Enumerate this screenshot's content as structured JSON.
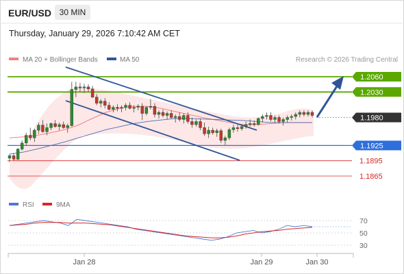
{
  "header": {
    "symbol": "EUR/USD",
    "timeframe": "30 MIN",
    "datetime": "Thursday, January 29, 2026 7:10:42 AM CET"
  },
  "legend": {
    "ma20": "MA 20 + Bollinger Bands",
    "ma50": "MA 50",
    "ma20_color": "#f08080",
    "ma50_color": "#2f5597",
    "credit": "Research © 2026 Trading Central"
  },
  "levels": {
    "resistance_2": "1.2060",
    "resistance_1": "1.2030",
    "current": "1.1980",
    "pivot": "1.1925",
    "support_1": "1.1895",
    "support_2": "1.1865",
    "resistance_color": "#5aa800",
    "pivot_color": "#2e6fdb",
    "support_color": "#d92626",
    "current_color": "#333333"
  },
  "x_axis": {
    "labels": [
      "Jan 28",
      "Jan 29",
      "Jan 30"
    ]
  },
  "rsi_panel": {
    "legend_rsi": "RSI",
    "legend_ma": "9MA",
    "rsi_color": "#4a7bd4",
    "ma_color": "#d92626",
    "ticks": [
      "70",
      "50",
      "30"
    ]
  },
  "chart_data": [
    {
      "type": "candlestick",
      "series": [
        {
          "name": "EUR/USD",
          "ohlc": [
            [
              1.19,
              1.1908,
              1.1892,
              1.1905
            ],
            [
              1.1905,
              1.191,
              1.1895,
              1.1898
            ],
            [
              1.1898,
              1.192,
              1.1896,
              1.1918
            ],
            [
              1.1918,
              1.1935,
              1.1915,
              1.193
            ],
            [
              1.193,
              1.195,
              1.1925,
              1.1945
            ],
            [
              1.1945,
              1.196,
              1.1935,
              1.194
            ],
            [
              1.194,
              1.1958,
              1.1932,
              1.1955
            ],
            [
              1.1955,
              1.197,
              1.1948,
              1.1965
            ],
            [
              1.1965,
              1.1975,
              1.195,
              1.1952
            ],
            [
              1.1952,
              1.1968,
              1.1945,
              1.196
            ],
            [
              1.196,
              1.197,
              1.1955,
              1.1968
            ],
            [
              1.1968,
              1.1975,
              1.196,
              1.1962
            ],
            [
              1.1962,
              1.197,
              1.1955,
              1.1966
            ],
            [
              1.1966,
              1.1972,
              1.1958,
              1.196
            ],
            [
              1.196,
              1.1968,
              1.195,
              1.1964
            ],
            [
              1.1964,
              1.205,
              1.1962,
              1.2035
            ],
            [
              1.2035,
              1.205,
              1.202,
              1.204
            ],
            [
              1.204,
              1.2048,
              1.203,
              1.2038
            ],
            [
              1.2038,
              1.2046,
              1.2028,
              1.204
            ],
            [
              1.204,
              1.2045,
              1.203,
              1.2036
            ],
            [
              1.2036,
              1.2042,
              1.2018,
              1.202
            ],
            [
              1.202,
              1.2026,
              1.2004,
              1.2008
            ],
            [
              1.2008,
              1.2016,
              1.2,
              1.2012
            ],
            [
              1.2012,
              1.2018,
              1.1998,
              1.2004
            ],
            [
              1.2004,
              1.201,
              1.1994,
              1.1996
            ],
            [
              1.1996,
              1.2004,
              1.199,
              1.2
            ],
            [
              1.2,
              1.2006,
              1.1992,
              1.1998
            ],
            [
              1.1998,
              1.2004,
              1.199,
              1.2
            ],
            [
              1.2,
              1.2008,
              1.1994,
              1.2004
            ],
            [
              1.2004,
              1.201,
              1.1996,
              1.1998
            ],
            [
              1.1998,
              1.2004,
              1.199,
              1.2
            ],
            [
              1.2,
              1.2006,
              1.1994,
              1.2002
            ],
            [
              1.2002,
              1.2008,
              1.1975,
              1.1988
            ],
            [
              1.1988,
              1.2002,
              1.1984,
              1.2
            ],
            [
              1.2,
              1.2016,
              1.1996,
              1.2002
            ],
            [
              1.2002,
              1.2008,
              1.198,
              1.1986
            ],
            [
              1.1986,
              1.1994,
              1.1978,
              1.199
            ],
            [
              1.199,
              1.1996,
              1.198,
              1.1984
            ],
            [
              1.1984,
              1.1992,
              1.1976,
              1.1988
            ],
            [
              1.1988,
              1.1994,
              1.1978,
              1.198
            ],
            [
              1.198,
              1.1986,
              1.197,
              1.1982
            ],
            [
              1.1982,
              1.199,
              1.1972,
              1.1976
            ],
            [
              1.1976,
              1.1988,
              1.1968,
              1.1984
            ],
            [
              1.1984,
              1.199,
              1.1968,
              1.1972
            ],
            [
              1.1972,
              1.198,
              1.196,
              1.1966
            ],
            [
              1.1966,
              1.1976,
              1.1962,
              1.1972
            ],
            [
              1.1972,
              1.1978,
              1.1955,
              1.196
            ],
            [
              1.196,
              1.197,
              1.1944,
              1.1948
            ],
            [
              1.1948,
              1.1962,
              1.194,
              1.1955
            ],
            [
              1.1955,
              1.196,
              1.1946,
              1.195
            ],
            [
              1.195,
              1.1958,
              1.1942,
              1.1954
            ],
            [
              1.1954,
              1.1958,
              1.193,
              1.1935
            ],
            [
              1.1935,
              1.1944,
              1.1926,
              1.194
            ],
            [
              1.194,
              1.196,
              1.1936,
              1.1956
            ],
            [
              1.1956,
              1.1966,
              1.195,
              1.196
            ],
            [
              1.196,
              1.1966,
              1.1952,
              1.1958
            ],
            [
              1.1958,
              1.1966,
              1.1954,
              1.1962
            ],
            [
              1.1962,
              1.1972,
              1.1958,
              1.1966
            ],
            [
              1.1966,
              1.1976,
              1.1962,
              1.1968
            ],
            [
              1.1968,
              1.1974,
              1.1962,
              1.1966
            ],
            [
              1.1966,
              1.198,
              1.1964,
              1.1978
            ],
            [
              1.1978,
              1.1986,
              1.197,
              1.1982
            ],
            [
              1.1982,
              1.199,
              1.1976,
              1.1984
            ],
            [
              1.1984,
              1.199,
              1.1972,
              1.1976
            ],
            [
              1.1976,
              1.1984,
              1.197,
              1.198
            ],
            [
              1.198,
              1.1984,
              1.1968,
              1.1972
            ],
            [
              1.1972,
              1.198,
              1.1964,
              1.1976
            ],
            [
              1.1976,
              1.1984,
              1.197,
              1.198
            ],
            [
              1.198,
              1.1986,
              1.1974,
              1.1982
            ],
            [
              1.1982,
              1.199,
              1.1976,
              1.1986
            ],
            [
              1.1986,
              1.1994,
              1.198,
              1.199
            ],
            [
              1.199,
              1.1994,
              1.1982,
              1.1986
            ],
            [
              1.1986,
              1.1994,
              1.1982,
              1.199
            ],
            [
              1.199,
              1.1994,
              1.198,
              1.1984
            ]
          ]
        }
      ],
      "overlays": [
        {
          "name": "MA 20",
          "values": [
            1.194,
            1.1942,
            1.1945,
            1.195,
            1.1956,
            1.1965,
            1.1978,
            1.199,
            1.1998,
            1.2002,
            1.2002,
            1.1998,
            1.1992,
            1.1986,
            1.198,
            1.1975,
            1.197,
            1.1966,
            1.1966,
            1.1968,
            1.197,
            1.197,
            1.197
          ]
        },
        {
          "name": "MA 50",
          "values": [
            1.1908,
            1.1912,
            1.1918,
            1.1925,
            1.1932,
            1.194,
            1.1948,
            1.1956,
            1.1962,
            1.1968,
            1.1972,
            1.1975,
            1.1978,
            1.1978,
            1.1977,
            1.1976,
            1.1975,
            1.1974,
            1.1972,
            1.197,
            1.197,
            1.197,
            1.197
          ]
        }
      ],
      "levels": [
        1.206,
        1.203,
        1.198,
        1.1925,
        1.1895,
        1.1865
      ],
      "projection": {
        "from": 1.198,
        "to": 1.206
      },
      "ylim": [
        1.184,
        1.209
      ]
    },
    {
      "type": "line",
      "series": [
        {
          "name": "RSI",
          "values": [
            62,
            64,
            66,
            68,
            70,
            68,
            66,
            62,
            72,
            70,
            68,
            66,
            64,
            62,
            60,
            56,
            54,
            52,
            50,
            48,
            46,
            44,
            42,
            40,
            38,
            40,
            44,
            50,
            52,
            54,
            50,
            52,
            56,
            62,
            60,
            62,
            60
          ]
        },
        {
          "name": "9MA",
          "values": [
            62,
            63,
            64,
            66,
            67,
            67,
            67,
            66,
            66,
            66,
            65,
            64,
            63,
            61,
            59,
            57,
            55,
            53,
            51,
            49,
            47,
            45,
            44,
            43,
            42,
            42,
            43,
            45,
            48,
            50,
            52,
            53,
            54,
            56,
            57,
            58,
            59
          ]
        }
      ],
      "ylim": [
        20,
        80
      ]
    }
  ]
}
